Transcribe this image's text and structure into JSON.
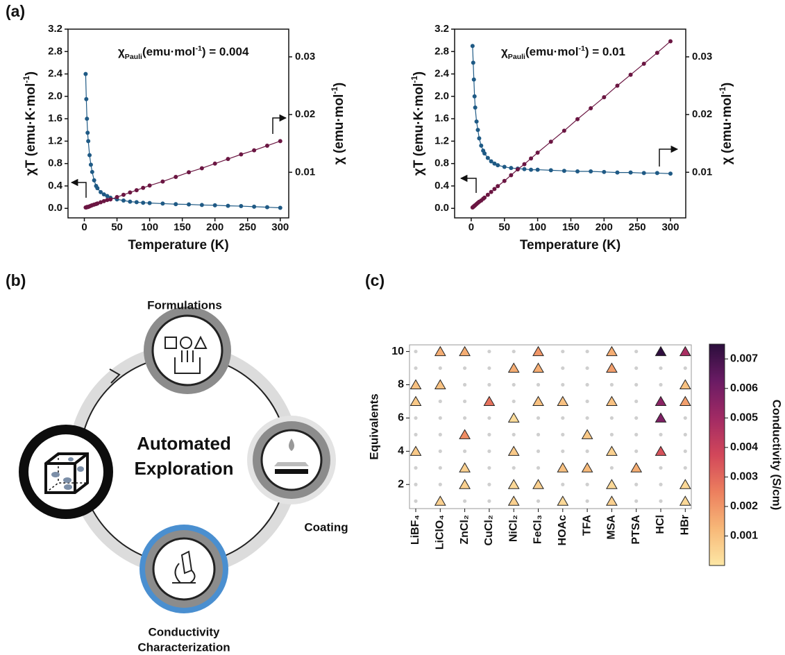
{
  "panel_labels": [
    "(a)",
    "(b)",
    "(c)"
  ],
  "diagram": {
    "center_label": [
      "Automated",
      "Exploration"
    ],
    "nodes": [
      {
        "label": [
          "Formulations"
        ]
      },
      {
        "label": [
          "Coating"
        ]
      },
      {
        "label": [
          "Conductivity",
          "Characterization"
        ]
      }
    ]
  },
  "chart_data": [
    {
      "type": "line",
      "xlabel": "Temperature (K)",
      "ylabel": [
        {
          "text": "χT (emu·K·mol"
        },
        {
          "text": "-1",
          "sup": true
        },
        {
          "text": ")"
        }
      ],
      "y2label": [
        {
          "text": "χ (emu·mol"
        },
        {
          "text": "-1",
          "sup": true
        },
        {
          "text": ")"
        }
      ],
      "annotation": [
        {
          "text": "χ"
        },
        {
          "text": "Pauli",
          "sub": true
        },
        {
          "text": "(emu·mol"
        },
        {
          "text": "-1",
          "sup": true
        },
        {
          "text": ") = 0.004"
        }
      ],
      "x": [
        2,
        3,
        4,
        5,
        6,
        8,
        10,
        12,
        15,
        18,
        20,
        25,
        30,
        35,
        40,
        50,
        60,
        70,
        80,
        90,
        100,
        120,
        140,
        160,
        180,
        200,
        220,
        240,
        260,
        280,
        300
      ],
      "series": [
        {
          "color": "#1f5a85",
          "values": [
            2.4,
            1.95,
            1.6,
            1.35,
            1.2,
            0.95,
            0.78,
            0.65,
            0.5,
            0.4,
            0.36,
            0.29,
            0.25,
            0.22,
            0.19,
            0.16,
            0.14,
            0.12,
            0.11,
            0.1,
            0.095,
            0.085,
            0.075,
            0.07,
            0.06,
            0.055,
            0.045,
            0.04,
            0.03,
            0.02,
            0.01
          ]
        },
        {
          "color": "#6b1642",
          "axis": "y2",
          "values": [
            0.0039,
            0.0039,
            0.004,
            0.004,
            0.004,
            0.0041,
            0.0042,
            0.0043,
            0.0044,
            0.0045,
            0.0046,
            0.0048,
            0.005,
            0.0052,
            0.0053,
            0.0057,
            0.0061,
            0.0065,
            0.0069,
            0.0073,
            0.0077,
            0.0084,
            0.0092,
            0.01,
            0.0107,
            0.0115,
            0.0123,
            0.0131,
            0.0138,
            0.0146,
            0.0154
          ]
        }
      ],
      "xlim": [
        -25,
        313
      ],
      "xticks": [
        0,
        50,
        100,
        150,
        200,
        250,
        300
      ],
      "ylim": [
        -0.17,
        3.2
      ],
      "yticks": [
        {
          "value": 0,
          "label": "0.0"
        },
        0.4,
        0.8,
        1.2,
        1.6,
        {
          "value": 2,
          "label": "2.0"
        },
        2.4,
        2.8,
        3.2
      ],
      "y2lim": [
        0.0021,
        0.0348
      ],
      "y2ticks": [
        0.01,
        0.02,
        0.03
      ]
    },
    {
      "type": "line",
      "xlabel": "Temperature (K)",
      "ylabel": [
        {
          "text": "χT (emu·K·mol"
        },
        {
          "text": "-1",
          "sup": true
        },
        {
          "text": ")"
        }
      ],
      "y2label": [
        {
          "text": "χ (emu·mol"
        },
        {
          "text": "-1",
          "sup": true
        },
        {
          "text": ")"
        }
      ],
      "annotation": [
        {
          "text": "χ"
        },
        {
          "text": "Pauli",
          "sub": true
        },
        {
          "text": "(emu·mol"
        },
        {
          "text": "-1",
          "sup": true
        },
        {
          "text": ") = 0.01"
        }
      ],
      "x": [
        2,
        3,
        4,
        5,
        6,
        8,
        10,
        12,
        15,
        18,
        20,
        25,
        30,
        35,
        40,
        50,
        60,
        70,
        80,
        90,
        100,
        120,
        140,
        160,
        180,
        200,
        220,
        240,
        260,
        280,
        300
      ],
      "series": [
        {
          "color": "#1f5a85",
          "values": [
            2.9,
            2.6,
            2.3,
            2.0,
            1.8,
            1.55,
            1.4,
            1.25,
            1.12,
            1.03,
            0.98,
            0.9,
            0.84,
            0.8,
            0.77,
            0.74,
            0.72,
            0.71,
            0.7,
            0.69,
            0.69,
            0.68,
            0.67,
            0.66,
            0.66,
            0.65,
            0.64,
            0.64,
            0.63,
            0.63,
            0.62
          ]
        },
        {
          "color": "#6b1642",
          "axis": "y2",
          "values": [
            0.0039,
            0.004,
            0.0041,
            0.0042,
            0.0043,
            0.0045,
            0.0047,
            0.0049,
            0.0051,
            0.0054,
            0.0056,
            0.0061,
            0.0066,
            0.0071,
            0.0076,
            0.0085,
            0.0095,
            0.0105,
            0.0114,
            0.0124,
            0.0134,
            0.0153,
            0.0172,
            0.0192,
            0.0211,
            0.023,
            0.025,
            0.0269,
            0.0288,
            0.0307,
            0.0327
          ]
        }
      ],
      "xlim": [
        -25,
        323
      ],
      "xticks": [
        0,
        50,
        100,
        150,
        200,
        250,
        300
      ],
      "ylim": [
        -0.17,
        3.2
      ],
      "yticks": [
        {
          "value": 0,
          "label": "0.0"
        },
        0.4,
        0.8,
        1.2,
        1.6,
        {
          "value": 2,
          "label": "2.0"
        },
        2.4,
        2.8,
        3.2
      ],
      "y2lim": [
        0.0021,
        0.0348
      ],
      "y2ticks": [
        0.01,
        0.02,
        0.03
      ]
    },
    {
      "type": "scatter",
      "ylabel": "Equivalents",
      "colorbar_label": "Conductivity (S/cm)",
      "categories": [
        "LiBF₄",
        "LiClO₄",
        "ZnCl₂",
        "CuCl₂",
        "NiCl₂",
        "FeCl₃",
        "HOAc",
        "TFA",
        "MSA",
        "PTSA",
        "HCl",
        "HBr"
      ],
      "x": [
        "LiClO₄",
        "ZnCl₂",
        "FeCl₃",
        "MSA",
        "HCl",
        "HBr",
        "NiCl₂",
        "FeCl₃",
        "MSA",
        "LiBF₄",
        "LiClO₄",
        "HBr",
        "LiBF₄",
        "CuCl₂",
        "FeCl₃",
        "HOAc",
        "MSA",
        "HCl",
        "HBr",
        "NiCl₂",
        "HCl",
        "ZnCl₂",
        "TFA",
        "LiBF₄",
        "NiCl₂",
        "MSA",
        "HCl",
        "ZnCl₂",
        "HOAc",
        "TFA",
        "PTSA",
        "ZnCl₂",
        "NiCl₂",
        "FeCl₃",
        "MSA",
        "HBr",
        "LiClO₄",
        "NiCl₂",
        "HOAc",
        "MSA",
        "HBr"
      ],
      "y": [
        10,
        10,
        10,
        10,
        10,
        10,
        9,
        9,
        9,
        8,
        8,
        8,
        7,
        7,
        7,
        7,
        7,
        7,
        7,
        6,
        6,
        5,
        5,
        4,
        4,
        4,
        4,
        3,
        3,
        3,
        3,
        2,
        2,
        2,
        2,
        2,
        1,
        1,
        1,
        1,
        1
      ],
      "c": [
        0.0015,
        0.0015,
        0.002,
        0.0015,
        0.0074,
        0.0048,
        0.0015,
        0.0015,
        0.0018,
        0.001,
        0.001,
        0.001,
        0.0008,
        0.0028,
        0.001,
        0.001,
        0.001,
        0.0055,
        0.0018,
        0.0003,
        0.0058,
        0.0022,
        0.0008,
        0.0008,
        0.0008,
        0.0006,
        0.0035,
        0.0006,
        0.001,
        0.0012,
        0.0015,
        0.0006,
        0.0004,
        0.0006,
        0.0004,
        0.0004,
        0.0006,
        0.0006,
        0.0004,
        0.0006,
        0.0004
      ],
      "ylim": [
        0.55,
        10.4
      ],
      "yticks": [
        2,
        4,
        6,
        8,
        10
      ],
      "clim": [
        0,
        0.0075
      ],
      "cticks": [
        0.001,
        0.002,
        0.003,
        0.004,
        0.005,
        0.006,
        0.007
      ],
      "colormap": [
        "#fde7a5",
        "#f7b878",
        "#ec7f5e",
        "#d2475a",
        "#a12a64",
        "#6a1b64",
        "#2b0e3c"
      ],
      "grid_dots": true
    }
  ]
}
